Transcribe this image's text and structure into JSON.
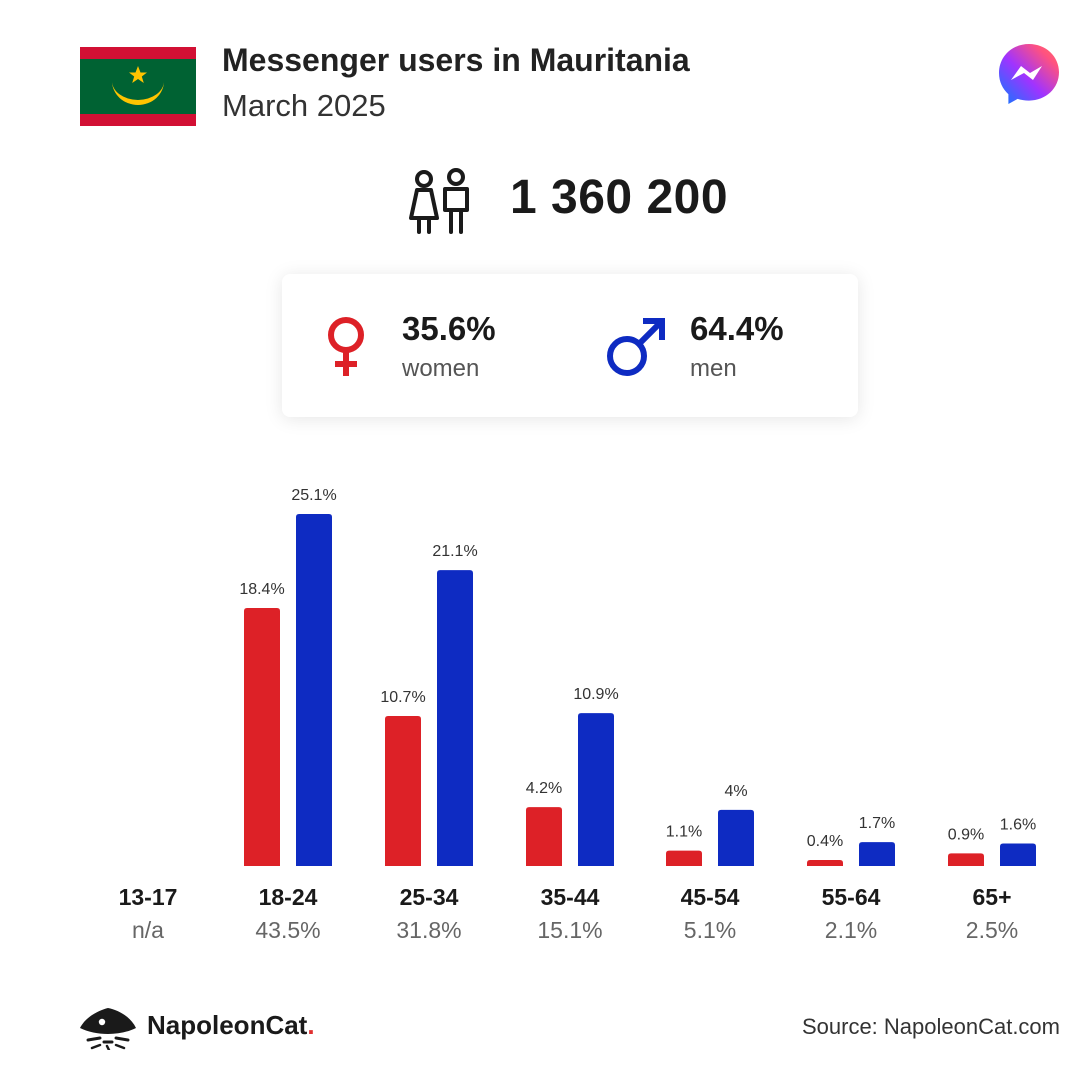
{
  "header": {
    "title": "Messenger users in Mauritania",
    "subtitle": "March 2025"
  },
  "summary": {
    "total_users": "1 360 200",
    "women_pct": "35.6%",
    "women_label": "women",
    "men_pct": "64.4%",
    "men_label": "men"
  },
  "footer": {
    "brand": "NapoleonCat",
    "brand_dot": ".",
    "source": "Source: NapoleonCat.com"
  },
  "colors": {
    "women": "#dd2127",
    "men": "#0e2bc2",
    "flag_green": "#006233",
    "flag_red": "#d21034",
    "flag_gold": "#ffc400"
  },
  "icons": [
    "mauritania-flag-icon",
    "messenger-logo-icon",
    "users-icon",
    "venus-icon",
    "mars-icon",
    "napoleoncat-logo-icon"
  ],
  "chart_data": {
    "type": "bar",
    "categories": [
      "13-17",
      "18-24",
      "25-34",
      "35-44",
      "45-54",
      "55-64",
      "65+"
    ],
    "category_totals": [
      "n/a",
      "43.5%",
      "31.8%",
      "15.1%",
      "5.1%",
      "2.1%",
      "2.5%"
    ],
    "series": [
      {
        "name": "women",
        "color": "#dd2127",
        "values": [
          null,
          18.4,
          10.7,
          4.2,
          1.1,
          0.4,
          0.9
        ],
        "labels": [
          "",
          "18.4%",
          "10.7%",
          "4.2%",
          "1.1%",
          "0.4%",
          "0.9%"
        ]
      },
      {
        "name": "men",
        "color": "#0e2bc2",
        "values": [
          null,
          25.1,
          21.1,
          10.9,
          4,
          1.7,
          1.6
        ],
        "labels": [
          "",
          "25.1%",
          "21.1%",
          "10.9%",
          "4%",
          "1.7%",
          "1.6%"
        ]
      }
    ],
    "ylim": [
      0,
      25.1
    ],
    "grid": false,
    "title": "",
    "xlabel": "",
    "ylabel": ""
  }
}
